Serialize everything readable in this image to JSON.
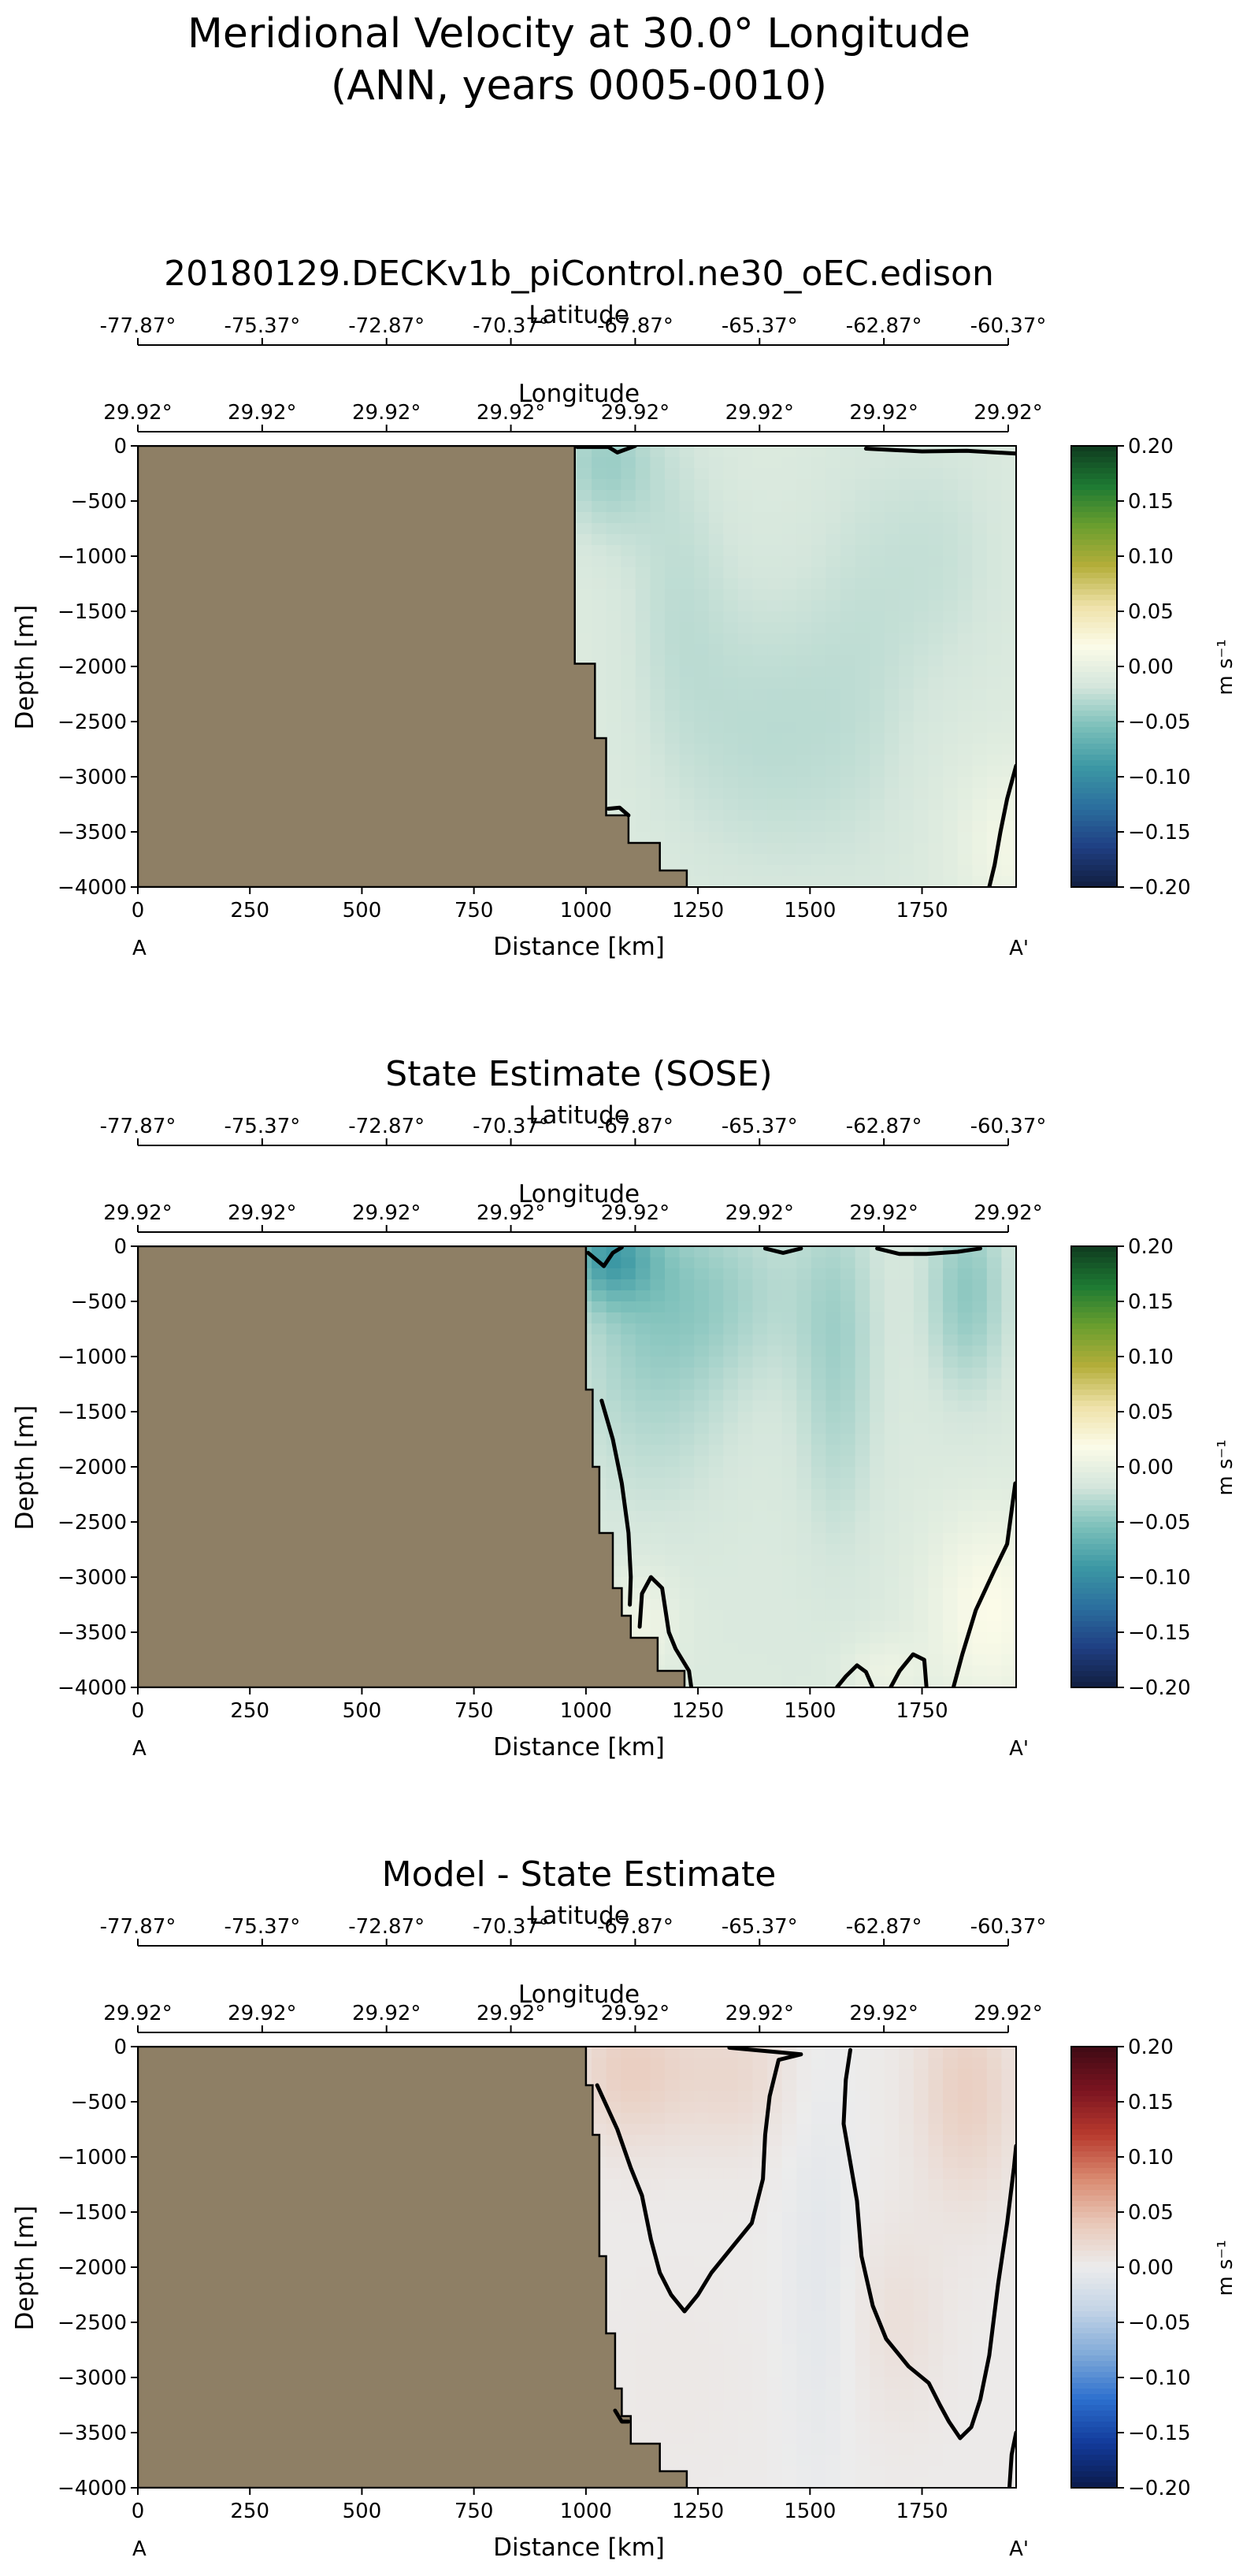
{
  "figure": {
    "title_line1": "Meridional Velocity at 30.0° Longitude",
    "title_line2": "(ANN, years 0005-0010)"
  },
  "colors": {
    "land": "#8e7f65",
    "contour": "#000000",
    "cmap_main": [
      "#111e3f",
      "#1f3f83",
      "#2b6f9e",
      "#3c98a4",
      "#7cc0ba",
      "#d4e6dc",
      "#fbfbe8",
      "#efe2a9",
      "#b5ae3a",
      "#6a9e2e",
      "#1d7a33",
      "#0f3a1f"
    ],
    "cmap_diff": [
      "#0b1a4a",
      "#123a9a",
      "#2c6fce",
      "#7fa9d8",
      "#c2d3e6",
      "#ececec",
      "#e9c8b8",
      "#d98a70",
      "#b83a2e",
      "#7b1420",
      "#3e0a14"
    ]
  },
  "chart_data": [
    {
      "type": "heatmap",
      "title": "20180129.DECKv1b_piControl.ne30_oEC.edison",
      "xlabel": "Distance [km]",
      "ylabel": "Depth [m]",
      "top_axis1_label": "Latitude",
      "top_axis2_label": "Longitude",
      "xlim": [
        0,
        1960
      ],
      "ylim": [
        -4000,
        0
      ],
      "xticks": [
        0,
        250,
        500,
        750,
        1000,
        1250,
        1500,
        1750
      ],
      "yticks": [
        0,
        -500,
        -1000,
        -1500,
        -2000,
        -2500,
        -3000,
        -3500,
        -4000
      ],
      "lat_ticks": [
        "-77.87°",
        "-75.37°",
        "-72.87°",
        "-70.37°",
        "-67.87°",
        "-65.37°",
        "-62.87°",
        "-60.37°"
      ],
      "lon_ticks": [
        "29.92°",
        "29.92°",
        "29.92°",
        "29.92°",
        "29.92°",
        "29.92°",
        "29.92°",
        "29.92°"
      ],
      "section_start": "A",
      "section_end": "A'",
      "colorbar_label": "m s⁻¹",
      "colorbar_ticks": [
        "0.20",
        "0.15",
        "0.10",
        "0.05",
        "0.00",
        "−0.05",
        "−0.10",
        "−0.15",
        "−0.20"
      ],
      "clim": [
        -0.2,
        0.2
      ],
      "colormap": "main",
      "land_boundary": [
        [
          975,
          0
        ],
        [
          975,
          -1975
        ],
        [
          1020,
          -1975
        ],
        [
          1020,
          -2650
        ],
        [
          1045,
          -2650
        ],
        [
          1045,
          -3350
        ],
        [
          1095,
          -3350
        ],
        [
          1095,
          -3600
        ],
        [
          1165,
          -3600
        ],
        [
          1165,
          -3850
        ],
        [
          1225,
          -3850
        ],
        [
          1225,
          -4000
        ]
      ],
      "field": {
        "background": -0.01,
        "blobs": [
          {
            "x": 1040,
            "y": -150,
            "rx": 110,
            "ry": 650,
            "v": -0.03
          },
          {
            "x": 1200,
            "y": -1200,
            "rx": 120,
            "ry": 1600,
            "v": -0.014
          },
          {
            "x": 1400,
            "y": -2600,
            "rx": 220,
            "ry": 1400,
            "v": -0.018
          },
          {
            "x": 1620,
            "y": -1800,
            "rx": 140,
            "ry": 2200,
            "v": -0.01
          },
          {
            "x": 1800,
            "y": -1000,
            "rx": 150,
            "ry": 1200,
            "v": -0.012
          },
          {
            "x": 1950,
            "y": -3600,
            "rx": 120,
            "ry": 700,
            "v": 0.02
          }
        ]
      },
      "contours": [
        [
          [
            980,
            -10
          ],
          [
            1050,
            -10
          ],
          [
            1070,
            -60
          ],
          [
            1110,
            0
          ]
        ],
        [
          [
            1625,
            -25
          ],
          [
            1750,
            -50
          ],
          [
            1850,
            -45
          ],
          [
            1960,
            -70
          ]
        ],
        [
          [
            1900,
            -4000
          ],
          [
            1912,
            -3800
          ],
          [
            1925,
            -3500
          ],
          [
            1940,
            -3200
          ],
          [
            1960,
            -2900
          ]
        ],
        [
          [
            1050,
            -3290
          ],
          [
            1075,
            -3280
          ],
          [
            1095,
            -3350
          ]
        ]
      ]
    },
    {
      "type": "heatmap",
      "title": "State Estimate (SOSE)",
      "xlabel": "Distance [km]",
      "ylabel": "Depth [m]",
      "top_axis1_label": "Latitude",
      "top_axis2_label": "Longitude",
      "xlim": [
        0,
        1960
      ],
      "ylim": [
        -4000,
        0
      ],
      "xticks": [
        0,
        250,
        500,
        750,
        1000,
        1250,
        1500,
        1750
      ],
      "yticks": [
        0,
        -500,
        -1000,
        -1500,
        -2000,
        -2500,
        -3000,
        -3500,
        -4000
      ],
      "lat_ticks": [
        "-77.87°",
        "-75.37°",
        "-72.87°",
        "-70.37°",
        "-67.87°",
        "-65.37°",
        "-62.87°",
        "-60.37°"
      ],
      "lon_ticks": [
        "29.92°",
        "29.92°",
        "29.92°",
        "29.92°",
        "29.92°",
        "29.92°",
        "29.92°",
        "29.92°"
      ],
      "section_start": "A",
      "section_end": "A'",
      "colorbar_label": "m s⁻¹",
      "colorbar_ticks": [
        "0.20",
        "0.15",
        "0.10",
        "0.05",
        "0.00",
        "−0.05",
        "−0.10",
        "−0.15",
        "−0.20"
      ],
      "clim": [
        -0.2,
        0.2
      ],
      "colormap": "main",
      "land_boundary": [
        [
          1000,
          0
        ],
        [
          1000,
          -1300
        ],
        [
          1015,
          -1300
        ],
        [
          1015,
          -2000
        ],
        [
          1030,
          -2000
        ],
        [
          1030,
          -2600
        ],
        [
          1060,
          -2600
        ],
        [
          1060,
          -3100
        ],
        [
          1080,
          -3100
        ],
        [
          1080,
          -3350
        ],
        [
          1100,
          -3350
        ],
        [
          1100,
          -3550
        ],
        [
          1160,
          -3550
        ],
        [
          1160,
          -3850
        ],
        [
          1220,
          -3850
        ],
        [
          1220,
          -4000
        ]
      ],
      "field": {
        "background": -0.012,
        "blobs": [
          {
            "x": 1050,
            "y": -100,
            "rx": 100,
            "ry": 400,
            "v": -0.06
          },
          {
            "x": 1150,
            "y": -900,
            "rx": 180,
            "ry": 1400,
            "v": -0.025
          },
          {
            "x": 1300,
            "y": -400,
            "rx": 220,
            "ry": 800,
            "v": -0.02
          },
          {
            "x": 1560,
            "y": -1000,
            "rx": 90,
            "ry": 1600,
            "v": -0.025
          },
          {
            "x": 1850,
            "y": -400,
            "rx": 90,
            "ry": 900,
            "v": -0.035
          },
          {
            "x": 1900,
            "y": -3300,
            "rx": 140,
            "ry": 900,
            "v": 0.03
          },
          {
            "x": 1120,
            "y": -3400,
            "rx": 90,
            "ry": 500,
            "v": 0.02
          },
          {
            "x": 1660,
            "y": -3850,
            "rx": 90,
            "ry": 300,
            "v": 0.015
          }
        ]
      },
      "contours": [
        [
          [
            1005,
            -60
          ],
          [
            1040,
            -180
          ],
          [
            1060,
            -60
          ],
          [
            1080,
            -10
          ]
        ],
        [
          [
            1035,
            -1400
          ],
          [
            1060,
            -1750
          ],
          [
            1080,
            -2150
          ],
          [
            1095,
            -2600
          ],
          [
            1100,
            -3000
          ],
          [
            1098,
            -3250
          ]
        ],
        [
          [
            1120,
            -3450
          ],
          [
            1125,
            -3150
          ],
          [
            1145,
            -3000
          ],
          [
            1170,
            -3100
          ],
          [
            1185,
            -3500
          ],
          [
            1200,
            -3650
          ],
          [
            1230,
            -3850
          ],
          [
            1235,
            -4000
          ]
        ],
        [
          [
            1560,
            -4000
          ],
          [
            1580,
            -3900
          ],
          [
            1605,
            -3800
          ],
          [
            1625,
            -3860
          ],
          [
            1640,
            -4000
          ]
        ],
        [
          [
            1680,
            -4000
          ],
          [
            1700,
            -3850
          ],
          [
            1730,
            -3700
          ],
          [
            1755,
            -3750
          ],
          [
            1760,
            -4000
          ]
        ],
        [
          [
            1820,
            -4000
          ],
          [
            1840,
            -3700
          ],
          [
            1870,
            -3300
          ],
          [
            1910,
            -2950
          ],
          [
            1940,
            -2700
          ],
          [
            1958,
            -2150
          ]
        ],
        [
          [
            1400,
            -20
          ],
          [
            1440,
            -60
          ],
          [
            1480,
            -20
          ]
        ],
        [
          [
            1650,
            -20
          ],
          [
            1700,
            -70
          ],
          [
            1760,
            -70
          ],
          [
            1830,
            -50
          ],
          [
            1880,
            -20
          ]
        ]
      ]
    },
    {
      "type": "heatmap",
      "title": "Model - State Estimate",
      "xlabel": "Distance [km]",
      "ylabel": "Depth [m]",
      "top_axis1_label": "Latitude",
      "top_axis2_label": "Longitude",
      "xlim": [
        0,
        1960
      ],
      "ylim": [
        -4000,
        0
      ],
      "xticks": [
        0,
        250,
        500,
        750,
        1000,
        1250,
        1500,
        1750
      ],
      "yticks": [
        0,
        -500,
        -1000,
        -1500,
        -2000,
        -2500,
        -3000,
        -3500,
        -4000
      ],
      "lat_ticks": [
        "-77.87°",
        "-75.37°",
        "-72.87°",
        "-70.37°",
        "-67.87°",
        "-65.37°",
        "-62.87°",
        "-60.37°"
      ],
      "lon_ticks": [
        "29.92°",
        "29.92°",
        "29.92°",
        "29.92°",
        "29.92°",
        "29.92°",
        "29.92°",
        "29.92°"
      ],
      "section_start": "A",
      "section_end": "A'",
      "colorbar_label": "m s⁻¹",
      "colorbar_ticks": [
        "0.20",
        "0.15",
        "0.10",
        "0.05",
        "0.00",
        "−0.05",
        "−0.10",
        "−0.15",
        "−0.20"
      ],
      "clim": [
        -0.2,
        0.2
      ],
      "colormap": "diff",
      "land_boundary": [
        [
          1000,
          0
        ],
        [
          1000,
          -350
        ],
        [
          1015,
          -350
        ],
        [
          1015,
          -800
        ],
        [
          1030,
          -800
        ],
        [
          1030,
          -1900
        ],
        [
          1045,
          -1900
        ],
        [
          1045,
          -2600
        ],
        [
          1065,
          -2600
        ],
        [
          1065,
          -3100
        ],
        [
          1080,
          -3100
        ],
        [
          1080,
          -3350
        ],
        [
          1100,
          -3350
        ],
        [
          1100,
          -3600
        ],
        [
          1165,
          -3600
        ],
        [
          1165,
          -3850
        ],
        [
          1225,
          -3850
        ],
        [
          1225,
          -4000
        ]
      ],
      "field": {
        "background": 0.002,
        "blobs": [
          {
            "x": 1100,
            "y": -200,
            "rx": 130,
            "ry": 700,
            "v": 0.03
          },
          {
            "x": 1330,
            "y": -250,
            "rx": 130,
            "ry": 700,
            "v": 0.02
          },
          {
            "x": 1850,
            "y": -400,
            "rx": 110,
            "ry": 1000,
            "v": 0.03
          },
          {
            "x": 1520,
            "y": -2000,
            "rx": 80,
            "ry": 2200,
            "v": -0.01
          },
          {
            "x": 1700,
            "y": -2500,
            "rx": 100,
            "ry": 900,
            "v": 0.012
          },
          {
            "x": 1200,
            "y": -3000,
            "rx": 150,
            "ry": 900,
            "v": 0.003
          }
        ]
      },
      "contours": [
        [
          [
            1025,
            -350
          ],
          [
            1070,
            -750
          ],
          [
            1100,
            -1100
          ],
          [
            1125,
            -1350
          ],
          [
            1145,
            -1750
          ],
          [
            1165,
            -2050
          ],
          [
            1190,
            -2250
          ],
          [
            1220,
            -2400
          ],
          [
            1250,
            -2250
          ],
          [
            1280,
            -2050
          ],
          [
            1330,
            -1800
          ],
          [
            1370,
            -1600
          ],
          [
            1395,
            -1200
          ],
          [
            1400,
            -800
          ],
          [
            1410,
            -450
          ],
          [
            1430,
            -120
          ],
          [
            1480,
            -70
          ],
          [
            1375,
            -30
          ],
          [
            1320,
            -10
          ]
        ],
        [
          [
            1590,
            -30
          ],
          [
            1580,
            -300
          ],
          [
            1575,
            -700
          ],
          [
            1590,
            -1050
          ],
          [
            1605,
            -1400
          ],
          [
            1615,
            -1900
          ],
          [
            1640,
            -2350
          ],
          [
            1670,
            -2650
          ],
          [
            1720,
            -2900
          ],
          [
            1765,
            -3050
          ],
          [
            1790,
            -3250
          ],
          [
            1810,
            -3400
          ],
          [
            1835,
            -3550
          ],
          [
            1860,
            -3450
          ],
          [
            1880,
            -3200
          ],
          [
            1900,
            -2800
          ],
          [
            1920,
            -2150
          ],
          [
            1940,
            -1600
          ],
          [
            1955,
            -1100
          ],
          [
            1960,
            -900
          ]
        ],
        [
          [
            1945,
            -4000
          ],
          [
            1950,
            -3700
          ],
          [
            1960,
            -3500
          ]
        ],
        [
          [
            1065,
            -3300
          ],
          [
            1080,
            -3400
          ],
          [
            1095,
            -3400
          ]
        ]
      ]
    }
  ]
}
